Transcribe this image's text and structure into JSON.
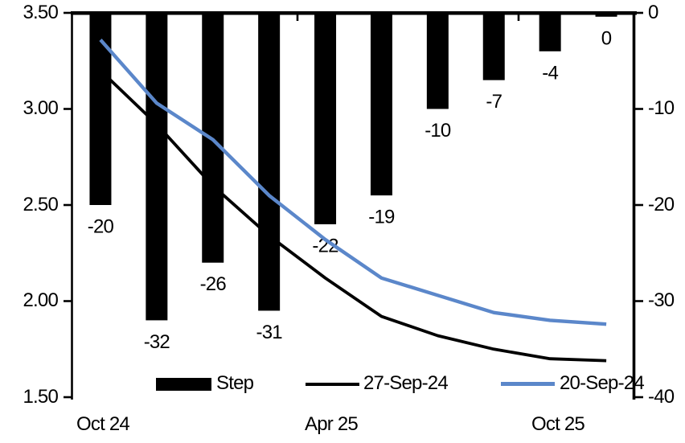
{
  "figure": {
    "background": "#ffffff",
    "text_color": "#000000"
  },
  "chart_data": {
    "type": "combo-bar-line",
    "title": "",
    "x_tick_labels": [
      "Oct 24",
      "Apr 25",
      "Oct 25"
    ],
    "left_axis": {
      "ticks": [
        "3.50",
        "3.00",
        "2.50",
        "2.00",
        "1.50"
      ],
      "min": 1.5,
      "max": 3.5
    },
    "right_axis": {
      "ticks": [
        "0",
        "-10",
        "-20",
        "-30",
        "-40"
      ],
      "min": -40,
      "max": 0
    },
    "bars": {
      "name": "Step",
      "axis": "right",
      "color": "#000000",
      "values": [
        -20,
        -32,
        -26,
        -31,
        -22,
        -19,
        -10,
        -7,
        -4,
        -0.4
      ],
      "labels": [
        "-20",
        "-32",
        "-26",
        "-31",
        "-22",
        "-19",
        "-10",
        "-7",
        "-4",
        "0"
      ]
    },
    "series": [
      {
        "name": "27-Sep-24",
        "type": "line",
        "axis": "left",
        "color": "#000000",
        "values": [
          3.2,
          2.92,
          2.6,
          2.34,
          2.12,
          1.92,
          1.82,
          1.75,
          1.7,
          1.69
        ]
      },
      {
        "name": "20-Sep-24",
        "type": "line",
        "axis": "left",
        "color": "#5b87ca",
        "values": [
          3.36,
          3.03,
          2.84,
          2.55,
          2.32,
          2.12,
          2.03,
          1.94,
          1.9,
          1.88
        ]
      }
    ],
    "legend": [
      {
        "label": "Step",
        "swatch": "bar",
        "color": "#000000"
      },
      {
        "label": "27-Sep-24",
        "swatch": "line",
        "color": "#000000"
      },
      {
        "label": "20-Sep-24",
        "swatch": "line",
        "color": "#5b87ca"
      }
    ],
    "layout_hints": {
      "legend_position": "bottom-inside",
      "grid": "off",
      "bar_labels_position": "outside-end-below"
    }
  }
}
